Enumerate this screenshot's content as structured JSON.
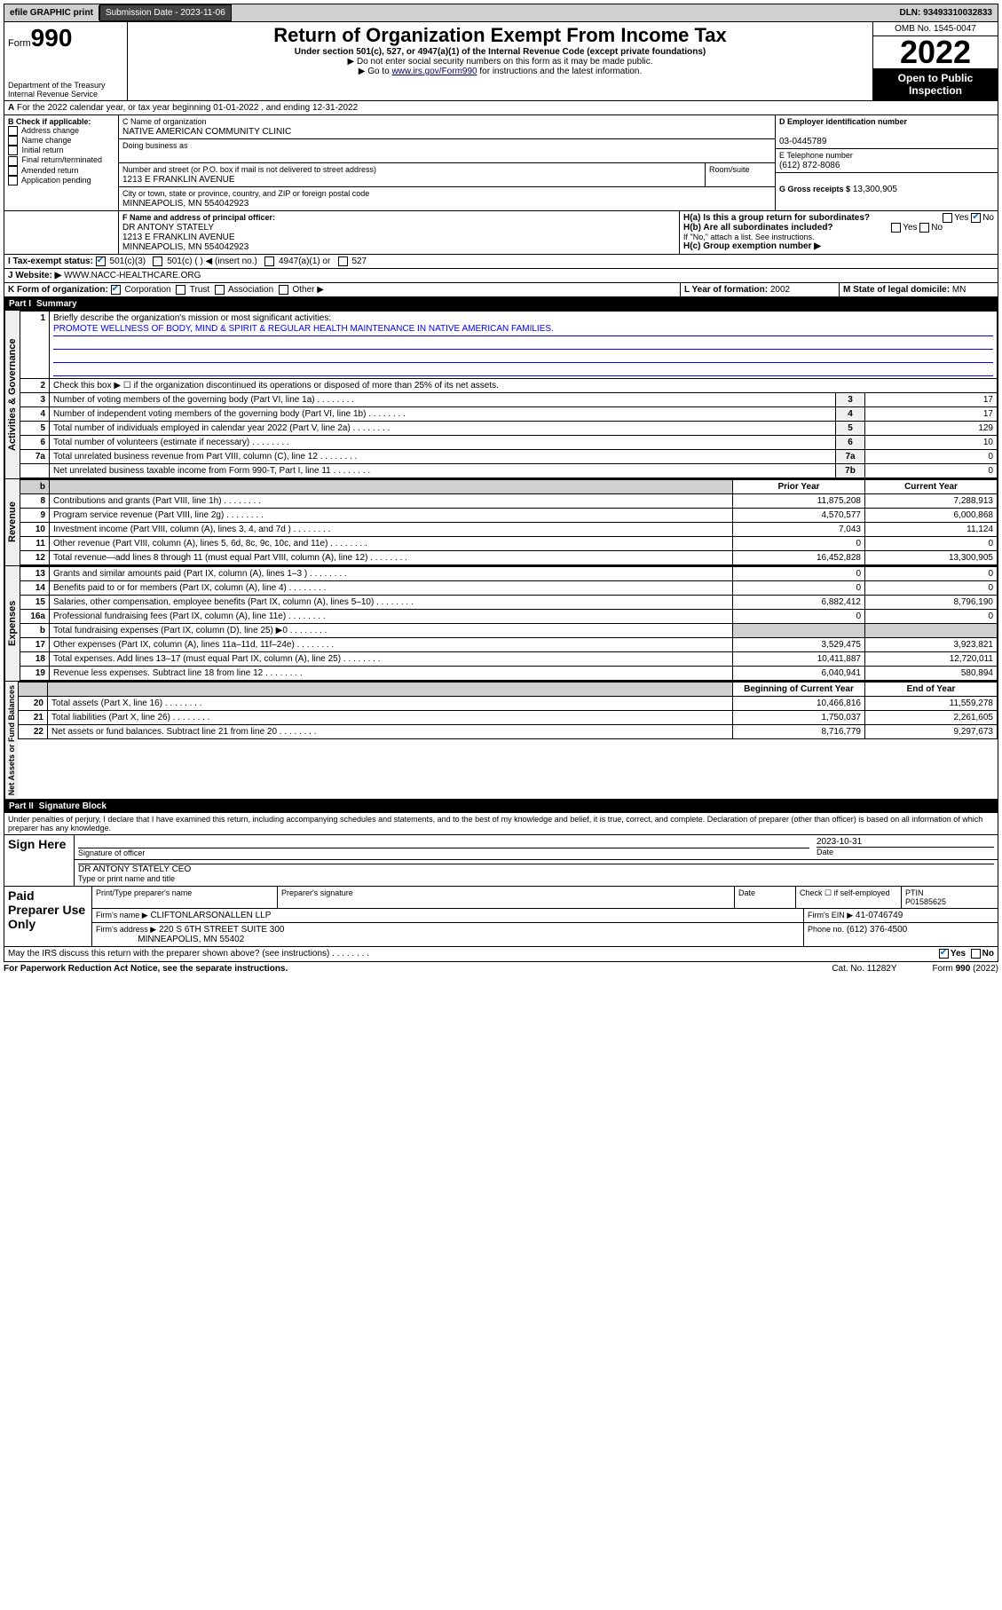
{
  "top": {
    "efile": "efile GRAPHIC print",
    "submission_label": "Submission Date - 2023-11-06",
    "dln": "DLN: 93493310032833"
  },
  "header": {
    "form_word": "Form",
    "form_number": "990",
    "title": "Return of Organization Exempt From Income Tax",
    "sub": "Under section 501(c), 527, or 4947(a)(1) of the Internal Revenue Code (except private foundations)",
    "note1": "▶ Do not enter social security numbers on this form as it may be made public.",
    "note2_pre": "▶ Go to ",
    "note2_link": "www.irs.gov/Form990",
    "note2_post": " for instructions and the latest information.",
    "dept": "Department of the Treasury",
    "irs": "Internal Revenue Service",
    "omb": "OMB No. 1545-0047",
    "year": "2022",
    "inspection": "Open to Public Inspection"
  },
  "A": {
    "text": "For the 2022 calendar year, or tax year beginning 01-01-2022   , and ending 12-31-2022"
  },
  "B": {
    "label": "B Check if applicable:",
    "opts": [
      "Address change",
      "Name change",
      "Initial return",
      "Final return/terminated",
      "Amended return",
      "Application pending"
    ]
  },
  "C": {
    "name_label": "C Name of organization",
    "name": "NATIVE AMERICAN COMMUNITY CLINIC",
    "dba_label": "Doing business as",
    "addr_label": "Number and street (or P.O. box if mail is not delivered to street address)",
    "room_label": "Room/suite",
    "street": "1213 E FRANKLIN AVENUE",
    "city_label": "City or town, state or province, country, and ZIP or foreign postal code",
    "city": "MINNEAPOLIS, MN  554042923"
  },
  "D": {
    "label": "D Employer identification number",
    "value": "03-0445789"
  },
  "E": {
    "label": "E Telephone number",
    "value": "(612) 872-8086"
  },
  "G": {
    "label": "G Gross receipts $",
    "value": "13,300,905"
  },
  "F": {
    "label": "F  Name and address of principal officer:",
    "name": "DR ANTONY STATELY",
    "street": "1213 E FRANKLIN AVENUE",
    "city": "MINNEAPOLIS, MN  554042923"
  },
  "H": {
    "a": "H(a)  Is this a group return for subordinates?",
    "b": "H(b)  Are all subordinates included?",
    "b_note": "If \"No,\" attach a list. See instructions.",
    "c": "H(c)  Group exemption number ▶",
    "yes": "Yes",
    "no": "No"
  },
  "I": {
    "label": "I   Tax-exempt status:",
    "o1": "501(c)(3)",
    "o2": "501(c) (  ) ◀ (insert no.)",
    "o3": "4947(a)(1) or",
    "o4": "527"
  },
  "J": {
    "label": "J   Website: ▶",
    "value": "WWW.NACC-HEALTHCARE.ORG"
  },
  "K": {
    "label": "K Form of organization:",
    "o1": "Corporation",
    "o2": "Trust",
    "o3": "Association",
    "o4": "Other ▶"
  },
  "L": {
    "label": "L Year of formation:",
    "value": "2002"
  },
  "M": {
    "label": "M State of legal domicile:",
    "value": "MN"
  },
  "partI": {
    "header_num": "Part I",
    "header_title": "Summary",
    "line1_label": "Briefly describe the organization's mission or most significant activities:",
    "mission": "PROMOTE WELLNESS OF BODY, MIND & SPIRIT & REGULAR HEALTH MAINTENANCE IN NATIVE AMERICAN FAMILIES.",
    "line2": "Check this box ▶ ☐  if the organization discontinued its operations or disposed of more than 25% of its net assets.",
    "gov_label": "Activities & Governance",
    "rev_label": "Revenue",
    "exp_label": "Expenses",
    "net_label": "Net Assets or Fund Balances",
    "prior_year": "Prior Year",
    "current_year": "Current Year",
    "beg_year": "Beginning of Current Year",
    "end_year": "End of Year",
    "lines_gov": [
      {
        "n": "3",
        "t": "Number of voting members of the governing body (Part VI, line 1a)",
        "b": "3",
        "v": "17"
      },
      {
        "n": "4",
        "t": "Number of independent voting members of the governing body (Part VI, line 1b)",
        "b": "4",
        "v": "17"
      },
      {
        "n": "5",
        "t": "Total number of individuals employed in calendar year 2022 (Part V, line 2a)",
        "b": "5",
        "v": "129"
      },
      {
        "n": "6",
        "t": "Total number of volunteers (estimate if necessary)",
        "b": "6",
        "v": "10"
      },
      {
        "n": "7a",
        "t": "Total unrelated business revenue from Part VIII, column (C), line 12",
        "b": "7a",
        "v": "0"
      },
      {
        "n": "",
        "t": "Net unrelated business taxable income from Form 990-T, Part I, line 11",
        "b": "7b",
        "v": "0"
      }
    ],
    "lines_rev": [
      {
        "n": "8",
        "t": "Contributions and grants (Part VIII, line 1h)",
        "p": "11,875,208",
        "c": "7,288,913"
      },
      {
        "n": "9",
        "t": "Program service revenue (Part VIII, line 2g)",
        "p": "4,570,577",
        "c": "6,000,868"
      },
      {
        "n": "10",
        "t": "Investment income (Part VIII, column (A), lines 3, 4, and 7d )",
        "p": "7,043",
        "c": "11,124"
      },
      {
        "n": "11",
        "t": "Other revenue (Part VIII, column (A), lines 5, 6d, 8c, 9c, 10c, and 11e)",
        "p": "0",
        "c": "0"
      },
      {
        "n": "12",
        "t": "Total revenue—add lines 8 through 11 (must equal Part VIII, column (A), line 12)",
        "p": "16,452,828",
        "c": "13,300,905"
      }
    ],
    "lines_exp": [
      {
        "n": "13",
        "t": "Grants and similar amounts paid (Part IX, column (A), lines 1–3 )",
        "p": "0",
        "c": "0"
      },
      {
        "n": "14",
        "t": "Benefits paid to or for members (Part IX, column (A), line 4)",
        "p": "0",
        "c": "0"
      },
      {
        "n": "15",
        "t": "Salaries, other compensation, employee benefits (Part IX, column (A), lines 5–10)",
        "p": "6,882,412",
        "c": "8,796,190"
      },
      {
        "n": "16a",
        "t": "Professional fundraising fees (Part IX, column (A), line 11e)",
        "p": "0",
        "c": "0"
      },
      {
        "n": "b",
        "t": "Total fundraising expenses (Part IX, column (D), line 25) ▶0",
        "p": "shade",
        "c": "shade"
      },
      {
        "n": "17",
        "t": "Other expenses (Part IX, column (A), lines 11a–11d, 11f–24e)",
        "p": "3,529,475",
        "c": "3,923,821"
      },
      {
        "n": "18",
        "t": "Total expenses. Add lines 13–17 (must equal Part IX, column (A), line 25)",
        "p": "10,411,887",
        "c": "12,720,011"
      },
      {
        "n": "19",
        "t": "Revenue less expenses. Subtract line 18 from line 12",
        "p": "6,040,941",
        "c": "580,894"
      }
    ],
    "lines_net": [
      {
        "n": "20",
        "t": "Total assets (Part X, line 16)",
        "p": "10,466,816",
        "c": "11,559,278"
      },
      {
        "n": "21",
        "t": "Total liabilities (Part X, line 26)",
        "p": "1,750,037",
        "c": "2,261,605"
      },
      {
        "n": "22",
        "t": "Net assets or fund balances. Subtract line 21 from line 20",
        "p": "8,716,779",
        "c": "9,297,673"
      }
    ]
  },
  "partII": {
    "header_num": "Part II",
    "header_title": "Signature Block",
    "declaration": "Under penalties of perjury, I declare that I have examined this return, including accompanying schedules and statements, and to the best of my knowledge and belief, it is true, correct, and complete. Declaration of preparer (other than officer) is based on all information of which preparer has any knowledge.",
    "sign_here": "Sign Here",
    "sig_officer": "Signature of officer",
    "date_label": "Date",
    "sig_date": "2023-10-31",
    "officer_name": "DR ANTONY STATELY CEO",
    "type_name": "Type or print name and title",
    "paid": "Paid Preparer Use Only",
    "prep_name_label": "Print/Type preparer's name",
    "prep_sig_label": "Preparer's signature",
    "check_if": "Check ☐ if self-employed",
    "ptin_label": "PTIN",
    "ptin": "P01585625",
    "firm_name_label": "Firm's name    ▶",
    "firm_name": "CLIFTONLARSONALLEN LLP",
    "firm_ein_label": "Firm's EIN ▶",
    "firm_ein": "41-0746749",
    "firm_addr_label": "Firm's address ▶",
    "firm_addr1": "220 S 6TH STREET SUITE 300",
    "firm_addr2": "MINNEAPOLIS, MN  55402",
    "phone_label": "Phone no.",
    "phone": "(612) 376-4500",
    "discuss": "May the IRS discuss this return with the preparer shown above? (see instructions)",
    "yes": "Yes",
    "no": "No"
  },
  "footer": {
    "paperwork": "For Paperwork Reduction Act Notice, see the separate instructions.",
    "cat": "Cat. No. 11282Y",
    "form": "Form 990 (2022)"
  }
}
